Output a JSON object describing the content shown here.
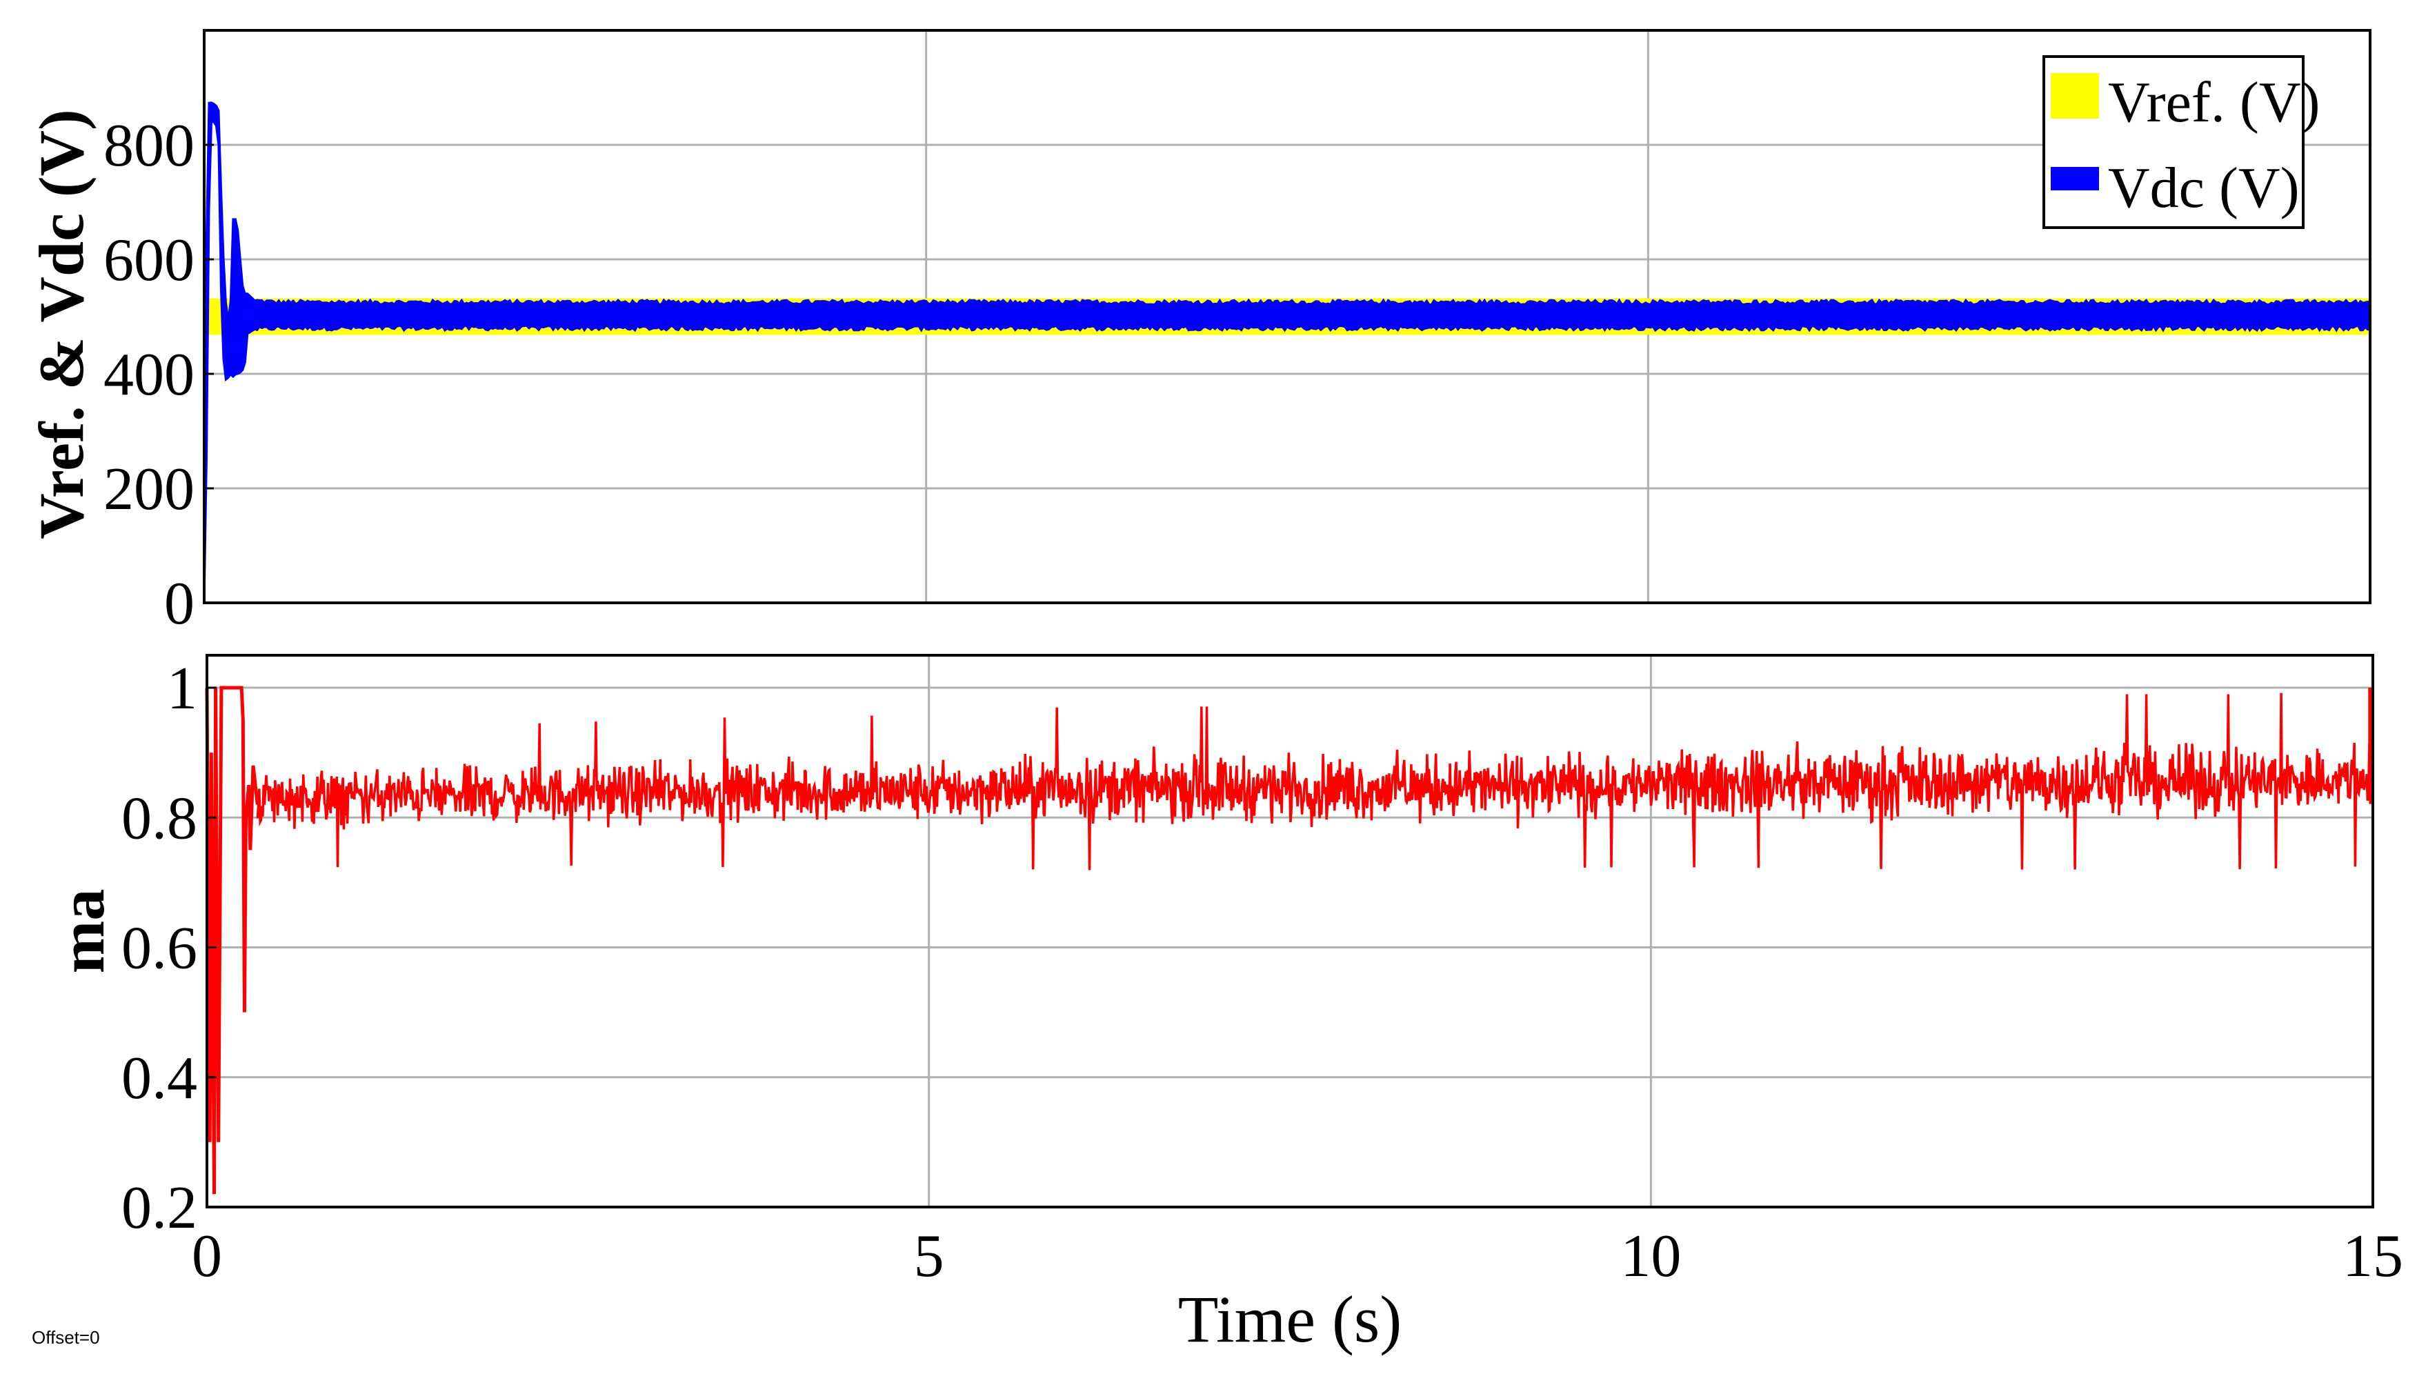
{
  "chart_data": [
    {
      "type": "line",
      "ylabel": "Vref. & Vdc (V)",
      "xlim": [
        0,
        15
      ],
      "ylim": [
        0,
        1000
      ],
      "xticks": [
        "0",
        "5",
        "10",
        "15"
      ],
      "xtick_values": [
        0,
        5,
        10,
        15
      ],
      "yticks": [
        "0",
        "200",
        "400",
        "600",
        "800"
      ],
      "ytick_values": [
        0,
        200,
        400,
        600,
        800
      ],
      "grid": true,
      "legend_position": "top-right",
      "series": [
        {
          "name": "Vref. (V)",
          "color": "#ffff00",
          "band": true,
          "x": [
            0,
            0.3,
            15
          ],
          "lower": [
            470,
            470,
            470
          ],
          "upper": [
            530,
            530,
            530
          ]
        },
        {
          "name": "Vdc (V)",
          "color": "#0000ff",
          "x": [
            0,
            0.01,
            0.02,
            0.04,
            0.08,
            0.1,
            0.12,
            0.14,
            0.16,
            0.18,
            0.2,
            0.22,
            0.24,
            0.26,
            0.28,
            0.3,
            0.35,
            0.5,
            2,
            5,
            8,
            10,
            12,
            15
          ],
          "lower": [
            0,
            0,
            380,
            840,
            840,
            800,
            500,
            390,
            390,
            400,
            395,
            400,
            400,
            405,
            410,
            470,
            478,
            480,
            480,
            480,
            480,
            480,
            480,
            480
          ],
          "upper": [
            0,
            200,
            870,
            875,
            870,
            860,
            700,
            560,
            490,
            500,
            670,
            670,
            640,
            560,
            540,
            540,
            528,
            525,
            525,
            525,
            525,
            525,
            525,
            525
          ]
        }
      ]
    },
    {
      "type": "line",
      "ylabel": "ma",
      "xlabel": "Time (s)",
      "xlim": [
        0,
        15
      ],
      "ylim": [
        0.2,
        1.05
      ],
      "xticks": [
        "0",
        "5",
        "10",
        "15"
      ],
      "xtick_values": [
        0,
        5,
        10,
        15
      ],
      "yticks": [
        "0.2",
        "0.4",
        "0.6",
        "0.8",
        "1"
      ],
      "ytick_values": [
        0.2,
        0.4,
        0.6,
        0.8,
        1.0
      ],
      "grid": true,
      "series": [
        {
          "name": "",
          "color": "#ff0000",
          "transient": {
            "x": [
              0,
              0.02,
              0.03,
              0.05,
              0.06,
              0.08,
              0.1,
              0.12,
              0.15,
              0.18,
              0.2,
              0.22,
              0.24,
              0.25,
              0.26,
              0.27,
              0.29,
              0.3,
              0.32,
              0.35
            ],
            "y": [
              1.0,
              0.3,
              0.9,
              0.22,
              1.0,
              0.3,
              1.0,
              1.0,
              1.0,
              1.0,
              1.0,
              1.0,
              1.0,
              0.95,
              0.5,
              0.8,
              0.85,
              0.75,
              0.88,
              0.82
            ]
          },
          "noise_band": {
            "x": [
              0.35,
              2,
              4,
              5,
              6,
              8,
              10,
              12,
              14,
              15
            ],
            "mean": [
              0.83,
              0.835,
              0.84,
              0.84,
              0.845,
              0.845,
              0.85,
              0.855,
              0.855,
              0.86
            ],
            "half_width": [
              0.06,
              0.06,
              0.065,
              0.065,
              0.07,
              0.07,
              0.07,
              0.075,
              0.075,
              0.075
            ]
          },
          "end_spike": {
            "x": 14.98,
            "y": 1.0
          }
        }
      ]
    }
  ],
  "footer": {
    "offset_text": "Offset=0"
  }
}
